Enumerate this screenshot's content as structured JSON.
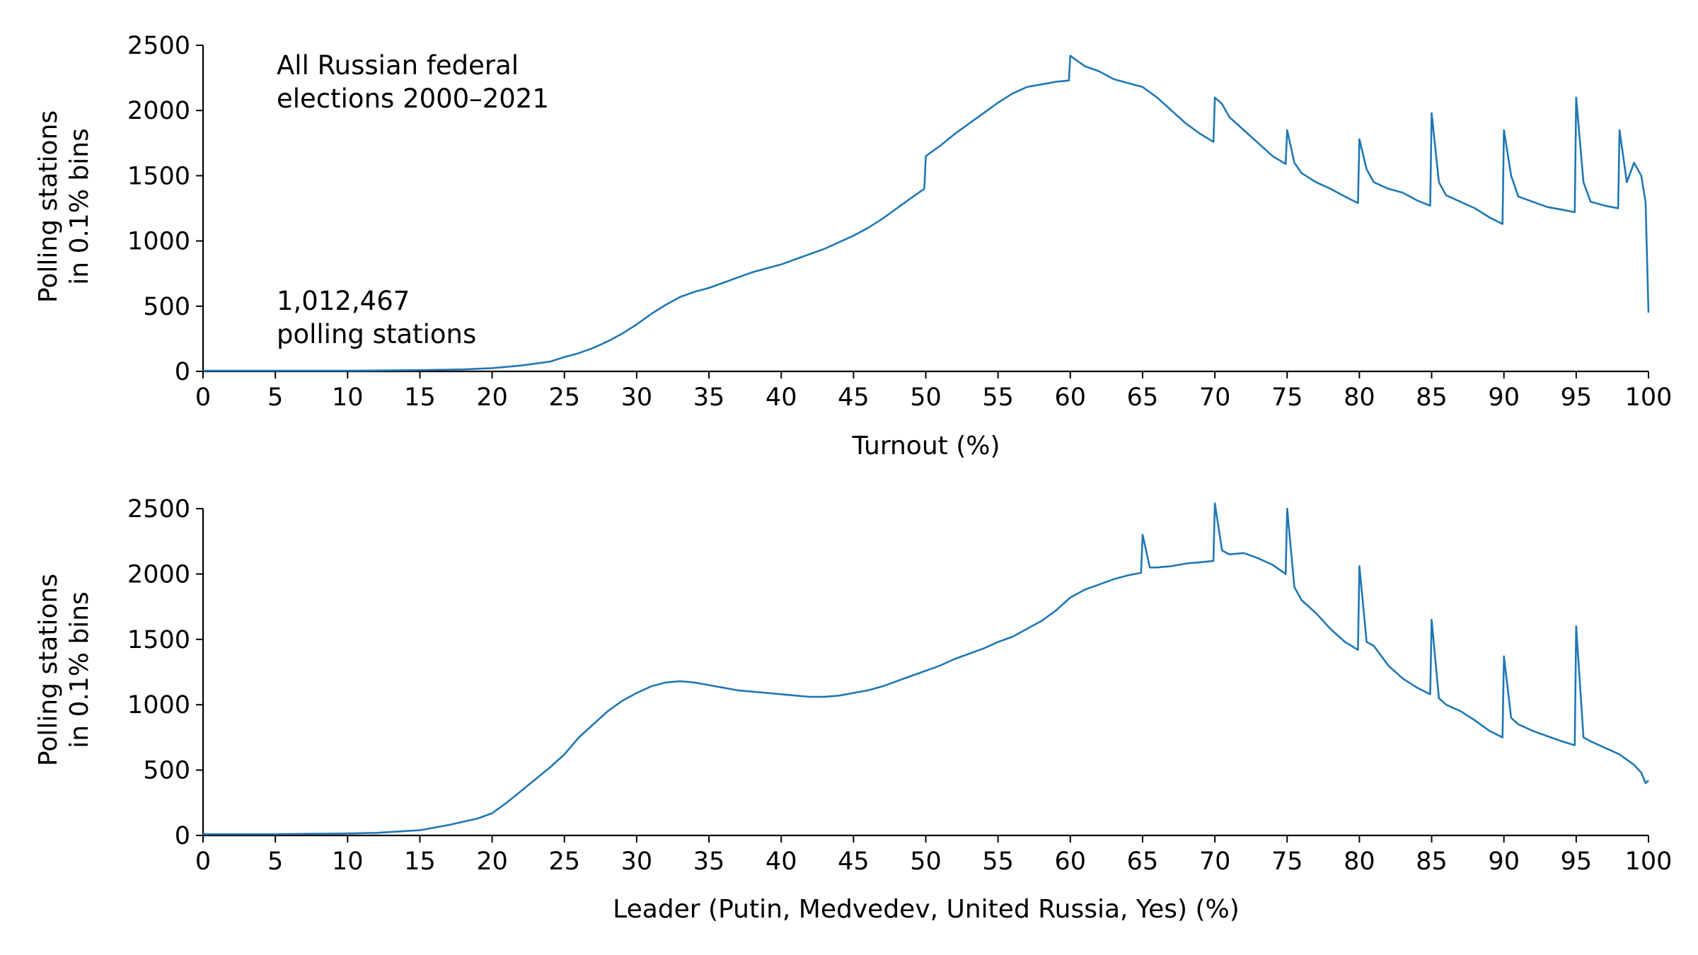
{
  "figure": {
    "line_color": "#1f77b4",
    "axis_color": "#000000"
  },
  "chart_data": [
    {
      "type": "line",
      "title": "",
      "xlabel": "Turnout (%)",
      "ylabel_line1": "Polling stations",
      "ylabel_line2": "in 0.1% bins",
      "xlim": [
        0,
        100
      ],
      "ylim": [
        0,
        2500
      ],
      "x_ticks": [
        "0",
        "5",
        "10",
        "15",
        "20",
        "25",
        "30",
        "35",
        "40",
        "45",
        "50",
        "55",
        "60",
        "65",
        "70",
        "75",
        "80",
        "85",
        "90",
        "95",
        "100"
      ],
      "y_ticks": [
        "0",
        "500",
        "1000",
        "1500",
        "2000",
        "2500"
      ],
      "grid": false,
      "annotations": {
        "top_line1": "All Russian federal",
        "top_line2": "elections 2000–2021",
        "count_line1": "1,012,467",
        "count_line2": "polling stations"
      },
      "series": [
        {
          "x": [
            0,
            5,
            10,
            15,
            18,
            20,
            22,
            24,
            25,
            26,
            27,
            28,
            29,
            30,
            31,
            32,
            33,
            34,
            35,
            36,
            37,
            38,
            39,
            40,
            41,
            42,
            43,
            44,
            45,
            46,
            47,
            48,
            49,
            49.9,
            50,
            51,
            52,
            53,
            54,
            55,
            56,
            57,
            58,
            59,
            59.9,
            60,
            61,
            62,
            63,
            64,
            65,
            66,
            67,
            68,
            69,
            69.9,
            70,
            70.5,
            71,
            72,
            73,
            74,
            74.9,
            75,
            75.5,
            76,
            77,
            78,
            79,
            79.9,
            80,
            80.5,
            81,
            82,
            83,
            84,
            84.9,
            85,
            85.5,
            86,
            87,
            88,
            89,
            89.9,
            90,
            90.5,
            91,
            92,
            93,
            94,
            94.9,
            95,
            95.5,
            96,
            97,
            97.9,
            98,
            98.5,
            99,
            99.5,
            99.8,
            100
          ],
          "values": [
            5,
            5,
            5,
            10,
            15,
            25,
            45,
            75,
            110,
            140,
            180,
            230,
            290,
            360,
            440,
            510,
            570,
            610,
            640,
            680,
            720,
            760,
            790,
            820,
            860,
            900,
            940,
            990,
            1040,
            1100,
            1170,
            1250,
            1330,
            1400,
            1650,
            1730,
            1820,
            1900,
            1980,
            2060,
            2130,
            2180,
            2200,
            2220,
            2230,
            2420,
            2340,
            2300,
            2240,
            2210,
            2180,
            2100,
            2000,
            1900,
            1820,
            1760,
            2100,
            2050,
            1950,
            1850,
            1750,
            1650,
            1590,
            1850,
            1600,
            1520,
            1450,
            1400,
            1340,
            1290,
            1780,
            1550,
            1450,
            1400,
            1370,
            1310,
            1270,
            1980,
            1450,
            1350,
            1300,
            1250,
            1180,
            1130,
            1850,
            1500,
            1340,
            1300,
            1260,
            1240,
            1220,
            2100,
            1450,
            1300,
            1270,
            1250,
            1850,
            1450,
            1600,
            1500,
            1300,
            450
          ]
        }
      ]
    },
    {
      "type": "line",
      "title": "",
      "xlabel": "Leader (Putin, Medvedev, United Russia, Yes) (%)",
      "ylabel_line1": "Polling stations",
      "ylabel_line2": "in 0.1% bins",
      "xlim": [
        0,
        100
      ],
      "ylim": [
        0,
        2500
      ],
      "x_ticks": [
        "0",
        "5",
        "10",
        "15",
        "20",
        "25",
        "30",
        "35",
        "40",
        "45",
        "50",
        "55",
        "60",
        "65",
        "70",
        "75",
        "80",
        "85",
        "90",
        "95",
        "100"
      ],
      "y_ticks": [
        "0",
        "500",
        "1000",
        "1500",
        "2000",
        "2500"
      ],
      "grid": false,
      "series": [
        {
          "x": [
            0,
            5,
            10,
            12,
            15,
            17,
            19,
            20,
            21,
            22,
            23,
            24,
            25,
            26,
            27,
            28,
            29,
            30,
            31,
            32,
            33,
            34,
            35,
            36,
            37,
            38,
            39,
            40,
            41,
            42,
            43,
            44,
            45,
            46,
            47,
            48,
            49,
            50,
            51,
            52,
            53,
            54,
            55,
            56,
            57,
            58,
            59,
            60,
            61,
            62,
            63,
            64,
            64.9,
            65,
            65.5,
            66,
            67,
            68,
            69,
            69.9,
            70,
            70.5,
            71,
            72,
            73,
            74,
            74.9,
            75,
            75.5,
            76,
            77,
            78,
            79,
            79.9,
            80,
            80.5,
            81,
            82,
            83,
            84,
            84.9,
            85,
            85.5,
            86,
            87,
            88,
            89,
            89.9,
            90,
            90.5,
            91,
            92,
            93,
            94,
            94.9,
            95,
            95.5,
            96,
            97,
            98,
            99,
            99.5,
            99.8,
            100
          ],
          "values": [
            10,
            10,
            15,
            20,
            40,
            80,
            130,
            170,
            250,
            340,
            430,
            520,
            620,
            750,
            850,
            950,
            1030,
            1090,
            1140,
            1170,
            1180,
            1170,
            1150,
            1130,
            1110,
            1100,
            1090,
            1080,
            1070,
            1060,
            1060,
            1070,
            1090,
            1110,
            1140,
            1180,
            1220,
            1260,
            1300,
            1350,
            1390,
            1430,
            1480,
            1520,
            1580,
            1640,
            1720,
            1820,
            1880,
            1920,
            1960,
            1990,
            2010,
            2300,
            2050,
            2050,
            2060,
            2080,
            2090,
            2100,
            2540,
            2180,
            2150,
            2160,
            2120,
            2070,
            2000,
            2500,
            1900,
            1800,
            1700,
            1580,
            1480,
            1420,
            2060,
            1480,
            1450,
            1300,
            1200,
            1130,
            1080,
            1650,
            1050,
            1000,
            950,
            880,
            800,
            750,
            1370,
            900,
            850,
            800,
            760,
            720,
            690,
            1600,
            750,
            720,
            670,
            620,
            540,
            480,
            400,
            420
          ]
        }
      ]
    }
  ]
}
